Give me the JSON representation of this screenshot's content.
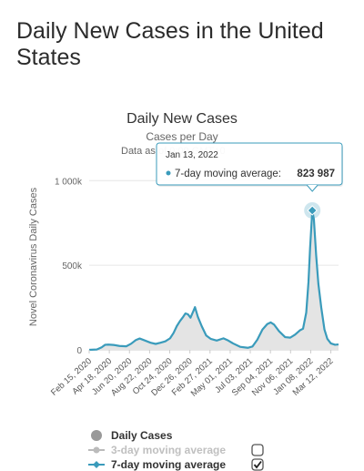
{
  "page": {
    "title": "Daily New Cases in the United States"
  },
  "chart_data": {
    "type": "area",
    "title": "Daily New Cases",
    "subtitle": "Cases per Day",
    "credit_text": "Data as of 0:00 GMT+0",
    "ylabel": "Novel Coronavirus Daily Cases",
    "ylim": [
      0,
      1120000
    ],
    "yticks": [
      {
        "value": 0,
        "label": "0"
      },
      {
        "value": 500000,
        "label": "500k"
      },
      {
        "value": 1000000,
        "label": "1 000k"
      }
    ],
    "x_range": [
      "2020-02-15",
      "2022-04-05"
    ],
    "x_tick_labels": [
      {
        "date": "2020-02-15",
        "label": "Feb 15, 2020"
      },
      {
        "date": "2020-04-18",
        "label": "Apr 18, 2020"
      },
      {
        "date": "2020-06-20",
        "label": "Jun 20, 2020"
      },
      {
        "date": "2020-08-22",
        "label": "Aug 22, 2020"
      },
      {
        "date": "2020-10-24",
        "label": "Oct 24, 2020"
      },
      {
        "date": "2020-12-26",
        "label": "Dec 26, 2020"
      },
      {
        "date": "2021-02-27",
        "label": "Feb 27, 2021"
      },
      {
        "date": "2021-05-01",
        "label": "May 01, 2021"
      },
      {
        "date": "2021-07-03",
        "label": "Jul 03, 2021"
      },
      {
        "date": "2021-09-04",
        "label": "Sep 04, 2021"
      },
      {
        "date": "2021-11-06",
        "label": "Nov 06, 2021"
      },
      {
        "date": "2022-01-08",
        "label": "Jan 08, 2022"
      },
      {
        "date": "2022-03-12",
        "label": "Mar 12, 2022"
      }
    ],
    "series": [
      {
        "name": "7-day moving average",
        "color": "#3a9bbb",
        "points": [
          [
            "2020-02-15",
            0
          ],
          [
            "2020-03-10",
            2000
          ],
          [
            "2020-03-25",
            15000
          ],
          [
            "2020-04-05",
            30000
          ],
          [
            "2020-04-15",
            31000
          ],
          [
            "2020-05-01",
            29000
          ],
          [
            "2020-05-20",
            23000
          ],
          [
            "2020-06-10",
            21000
          ],
          [
            "2020-06-25",
            36000
          ],
          [
            "2020-07-10",
            58000
          ],
          [
            "2020-07-22",
            67000
          ],
          [
            "2020-08-05",
            57000
          ],
          [
            "2020-08-25",
            42000
          ],
          [
            "2020-09-10",
            35000
          ],
          [
            "2020-09-25",
            42000
          ],
          [
            "2020-10-10",
            50000
          ],
          [
            "2020-10-25",
            68000
          ],
          [
            "2020-11-05",
            100000
          ],
          [
            "2020-11-15",
            140000
          ],
          [
            "2020-11-25",
            170000
          ],
          [
            "2020-12-05",
            195000
          ],
          [
            "2020-12-12",
            215000
          ],
          [
            "2020-12-20",
            210000
          ],
          [
            "2020-12-28",
            190000
          ],
          [
            "2021-01-05",
            225000
          ],
          [
            "2021-01-11",
            252000
          ],
          [
            "2021-01-20",
            195000
          ],
          [
            "2021-02-01",
            140000
          ],
          [
            "2021-02-15",
            85000
          ],
          [
            "2021-03-01",
            65000
          ],
          [
            "2021-03-20",
            55000
          ],
          [
            "2021-04-10",
            68000
          ],
          [
            "2021-04-25",
            55000
          ],
          [
            "2021-05-10",
            38000
          ],
          [
            "2021-06-01",
            18000
          ],
          [
            "2021-06-25",
            12000
          ],
          [
            "2021-07-10",
            20000
          ],
          [
            "2021-07-25",
            60000
          ],
          [
            "2021-08-10",
            120000
          ],
          [
            "2021-08-25",
            152000
          ],
          [
            "2021-09-05",
            162000
          ],
          [
            "2021-09-15",
            150000
          ],
          [
            "2021-10-01",
            110000
          ],
          [
            "2021-10-20",
            75000
          ],
          [
            "2021-11-05",
            72000
          ],
          [
            "2021-11-20",
            90000
          ],
          [
            "2021-12-05",
            115000
          ],
          [
            "2021-12-15",
            125000
          ],
          [
            "2021-12-25",
            220000
          ],
          [
            "2022-01-01",
            400000
          ],
          [
            "2022-01-06",
            600000
          ],
          [
            "2022-01-13",
            823987
          ],
          [
            "2022-01-18",
            770000
          ],
          [
            "2022-01-25",
            560000
          ],
          [
            "2022-02-01",
            390000
          ],
          [
            "2022-02-10",
            250000
          ],
          [
            "2022-02-20",
            120000
          ],
          [
            "2022-03-01",
            65000
          ],
          [
            "2022-03-12",
            38000
          ],
          [
            "2022-03-25",
            30000
          ],
          [
            "2022-04-05",
            32000
          ]
        ]
      }
    ],
    "tooltip": {
      "date": "Jan 13, 2022",
      "series_label": "7-day moving average:",
      "value_label": "823 987",
      "x": "2022-01-13",
      "y": 823987
    },
    "legend": {
      "placement": "bottom-left",
      "items": [
        {
          "label": "Daily Cases",
          "color": "#999999",
          "marker": "circle",
          "checkbox": false,
          "checked": false,
          "active": true
        },
        {
          "label": "3-day moving average",
          "color": "#bbbbbb",
          "marker": "line-circle",
          "checkbox": true,
          "checked": false,
          "active": false
        },
        {
          "label": "7-day moving average",
          "color": "#3a9bbb",
          "marker": "line-diamond",
          "checkbox": true,
          "checked": true,
          "active": true
        }
      ]
    },
    "grid": true
  }
}
